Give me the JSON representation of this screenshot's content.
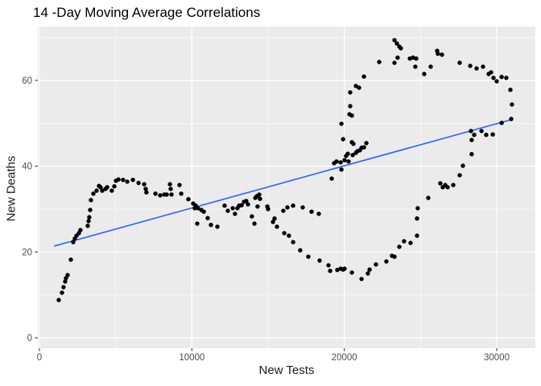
{
  "chart_data": {
    "type": "scatter",
    "title": "14 -Day Moving Average Correlations",
    "xlabel": "New Tests",
    "ylabel": "New Deaths",
    "x_ticks": [
      0,
      10000,
      20000,
      30000
    ],
    "y_ticks": [
      0,
      20,
      40,
      60
    ],
    "x_minor_gridlines": [
      5000,
      15000,
      25000
    ],
    "y_minor_gridlines": [
      10,
      30,
      50,
      70
    ],
    "xlim": [
      -150,
      32550
    ],
    "ylim": [
      -2.4,
      72.6
    ],
    "grid": true,
    "legend_position": "none",
    "colors": {
      "panel_background": "#EBEBEB",
      "gridline": "#FFFFFF",
      "point": "#000000",
      "trend_line": "#3366FF",
      "tick_label": "#4D4D4D",
      "tick_mark": "#333333",
      "title": "#000000"
    },
    "trend_line": {
      "x1": 1000,
      "y1": 21.4,
      "x2": 31000,
      "y2": 50.9
    },
    "points": [
      [
        1270,
        8.8
      ],
      [
        1480,
        10.5
      ],
      [
        1580,
        11.8
      ],
      [
        1690,
        13.1
      ],
      [
        1740,
        13.9
      ],
      [
        1850,
        14.6
      ],
      [
        2060,
        18.2
      ],
      [
        2220,
        22.3
      ],
      [
        2320,
        23.1
      ],
      [
        2430,
        23.8
      ],
      [
        2590,
        24.4
      ],
      [
        2690,
        25.1
      ],
      [
        3170,
        26.1
      ],
      [
        3220,
        27.2
      ],
      [
        3270,
        28.1
      ],
      [
        3330,
        29.8
      ],
      [
        3380,
        32.1
      ],
      [
        3540,
        33.6
      ],
      [
        3750,
        34.3
      ],
      [
        3910,
        35.4
      ],
      [
        4010,
        35.1
      ],
      [
        4120,
        34.3
      ],
      [
        4330,
        34.7
      ],
      [
        4440,
        35.1
      ],
      [
        4750,
        34.3
      ],
      [
        4910,
        35.3
      ],
      [
        5020,
        36.6
      ],
      [
        5180,
        36.9
      ],
      [
        5490,
        36.8
      ],
      [
        5760,
        36.4
      ],
      [
        6130,
        36.8
      ],
      [
        6500,
        36.1
      ],
      [
        6870,
        35.8
      ],
      [
        6970,
        34.7
      ],
      [
        7020,
        33.9
      ],
      [
        7610,
        33.6
      ],
      [
        7920,
        33.2
      ],
      [
        8190,
        33.4
      ],
      [
        8350,
        33.4
      ],
      [
        8560,
        35.8
      ],
      [
        8610,
        34.7
      ],
      [
        8660,
        33.4
      ],
      [
        9190,
        35.6
      ],
      [
        9300,
        33.6
      ],
      [
        9770,
        32.3
      ],
      [
        10090,
        31.3
      ],
      [
        10190,
        30.2
      ],
      [
        10250,
        30.8
      ],
      [
        10350,
        26.6
      ],
      [
        10400,
        30.2
      ],
      [
        10620,
        29.8
      ],
      [
        10780,
        29.4
      ],
      [
        11040,
        27.9
      ],
      [
        11250,
        26.3
      ],
      [
        11670,
        25.9
      ],
      [
        12150,
        30.8
      ],
      [
        12360,
        29.6
      ],
      [
        12680,
        30.2
      ],
      [
        12830,
        28.9
      ],
      [
        12990,
        30.2
      ],
      [
        13100,
        30.8
      ],
      [
        13260,
        30.9
      ],
      [
        13420,
        31.7
      ],
      [
        13570,
        31.9
      ],
      [
        13680,
        31.1
      ],
      [
        13940,
        28.3
      ],
      [
        14100,
        26.6
      ],
      [
        14160,
        32.6
      ],
      [
        14260,
        33.0
      ],
      [
        14310,
        30.6
      ],
      [
        14420,
        33.4
      ],
      [
        14470,
        32.4
      ],
      [
        14950,
        30.6
      ],
      [
        15000,
        30.0
      ],
      [
        15320,
        27.0
      ],
      [
        15420,
        27.8
      ],
      [
        15580,
        25.9
      ],
      [
        16000,
        29.6
      ],
      [
        16060,
        24.4
      ],
      [
        16270,
        30.4
      ],
      [
        16370,
        23.8
      ],
      [
        16640,
        30.8
      ],
      [
        16640,
        22.3
      ],
      [
        17110,
        20.4
      ],
      [
        17270,
        30.4
      ],
      [
        17640,
        18.9
      ],
      [
        17850,
        29.4
      ],
      [
        18330,
        28.9
      ],
      [
        18380,
        18.0
      ],
      [
        18960,
        16.9
      ],
      [
        19070,
        15.6
      ],
      [
        19540,
        15.8
      ],
      [
        19760,
        16.1
      ],
      [
        19920,
        15.9
      ],
      [
        20020,
        16.1
      ],
      [
        20500,
        15.2
      ],
      [
        21130,
        13.7
      ],
      [
        21550,
        15.0
      ],
      [
        21660,
        15.9
      ],
      [
        22080,
        17.1
      ],
      [
        22760,
        17.8
      ],
      [
        23130,
        19.1
      ],
      [
        23290,
        18.9
      ],
      [
        23610,
        21.2
      ],
      [
        23920,
        22.5
      ],
      [
        24350,
        22.1
      ],
      [
        24770,
        23.8
      ],
      [
        24770,
        27.8
      ],
      [
        24820,
        30.2
      ],
      [
        25510,
        32.6
      ],
      [
        26300,
        36.0
      ],
      [
        26460,
        35.1
      ],
      [
        26620,
        35.6
      ],
      [
        26780,
        35.1
      ],
      [
        27150,
        35.6
      ],
      [
        27570,
        37.9
      ],
      [
        27780,
        40.1
      ],
      [
        28360,
        42.8
      ],
      [
        28360,
        46.1
      ],
      [
        28520,
        47.3
      ],
      [
        28310,
        48.2
      ],
      [
        29000,
        48.2
      ],
      [
        29310,
        47.3
      ],
      [
        29740,
        47.4
      ],
      [
        30320,
        50.1
      ],
      [
        30950,
        51.0
      ],
      [
        31000,
        54.4
      ],
      [
        19170,
        37.1
      ],
      [
        19330,
        40.7
      ],
      [
        19490,
        41.1
      ],
      [
        19760,
        40.9
      ],
      [
        19810,
        39.2
      ],
      [
        19920,
        46.3
      ],
      [
        20020,
        41.4
      ],
      [
        20120,
        42.4
      ],
      [
        20230,
        42.9
      ],
      [
        20280,
        41.1
      ],
      [
        20340,
        52.1
      ],
      [
        20390,
        54.0
      ],
      [
        20390,
        57.2
      ],
      [
        20500,
        45.6
      ],
      [
        20500,
        51.8
      ],
      [
        20550,
        42.6
      ],
      [
        20600,
        45.2
      ],
      [
        20760,
        43.1
      ],
      [
        20760,
        58.7
      ],
      [
        20860,
        43.5
      ],
      [
        20970,
        58.3
      ],
      [
        21020,
        43.7
      ],
      [
        21130,
        44.3
      ],
      [
        21290,
        44.4
      ],
      [
        21290,
        60.9
      ],
      [
        21450,
        45.4
      ],
      [
        19810,
        49.9
      ],
      [
        22290,
        64.3
      ],
      [
        23290,
        69.4
      ],
      [
        23450,
        68.6
      ],
      [
        23610,
        67.9
      ],
      [
        23710,
        67.5
      ],
      [
        23290,
        64.1
      ],
      [
        23500,
        65.3
      ],
      [
        24300,
        65.1
      ],
      [
        24510,
        65.3
      ],
      [
        24720,
        65.1
      ],
      [
        24660,
        63.2
      ],
      [
        25240,
        61.5
      ],
      [
        25670,
        63.2
      ],
      [
        26090,
        66.9
      ],
      [
        26140,
        66.2
      ],
      [
        26410,
        66.0
      ],
      [
        27570,
        64.1
      ],
      [
        28260,
        63.4
      ],
      [
        28680,
        62.8
      ],
      [
        29100,
        63.2
      ],
      [
        29470,
        61.5
      ],
      [
        29630,
        61.9
      ],
      [
        29790,
        60.6
      ],
      [
        30000,
        59.8
      ],
      [
        30320,
        60.8
      ],
      [
        30630,
        60.6
      ],
      [
        30900,
        57.8
      ]
    ]
  }
}
